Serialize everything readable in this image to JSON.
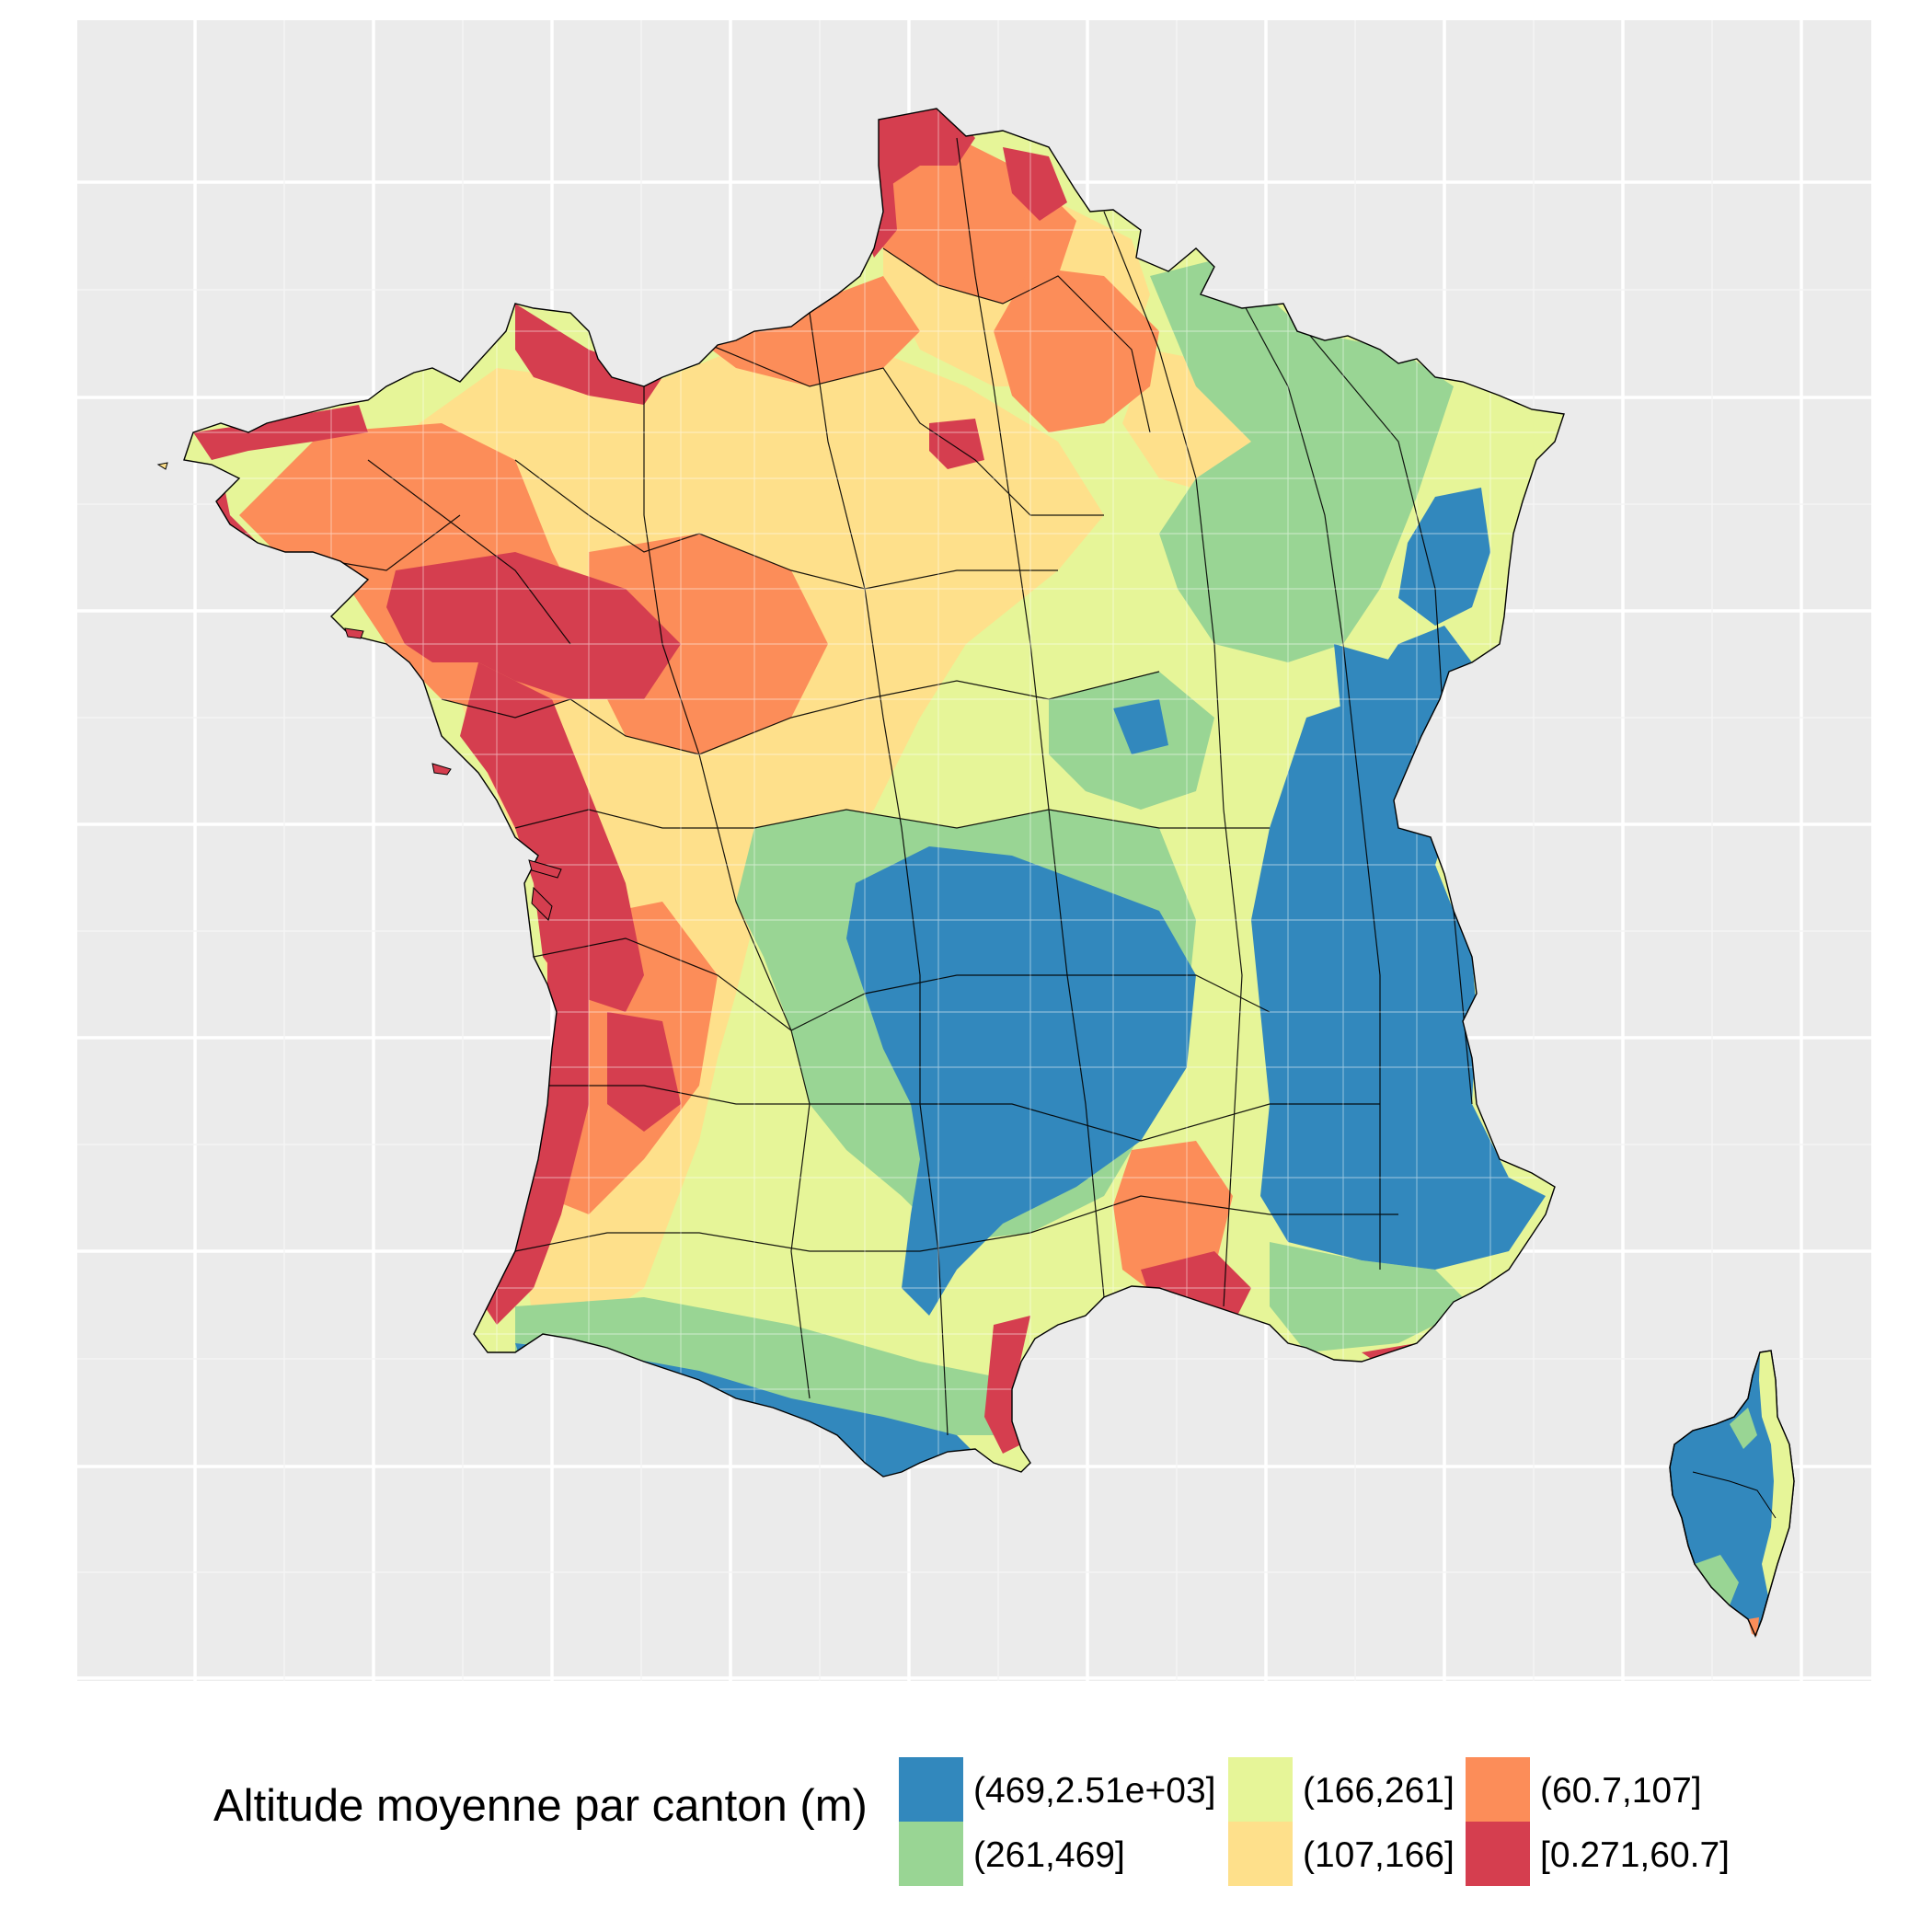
{
  "legend": {
    "title": "Altitude moyenne par canton (m)",
    "entries": [
      {
        "label": "(469,2.51e+03]",
        "color": "#3288bd"
      },
      {
        "label": "(261,469]",
        "color": "#99d594"
      },
      {
        "label": "(166,261]",
        "color": "#e6f598"
      },
      {
        "label": "(107,166]",
        "color": "#fee08b"
      },
      {
        "label": "(60.7,107]",
        "color": "#fc8d59"
      },
      {
        "label": "[0.271,60.7]",
        "color": "#d53e4f"
      }
    ]
  },
  "map": {
    "background": "#ebebeb",
    "gridline_color": "#ffffff",
    "border_color": "#000000",
    "canton_border_color": "#ffffff"
  }
}
